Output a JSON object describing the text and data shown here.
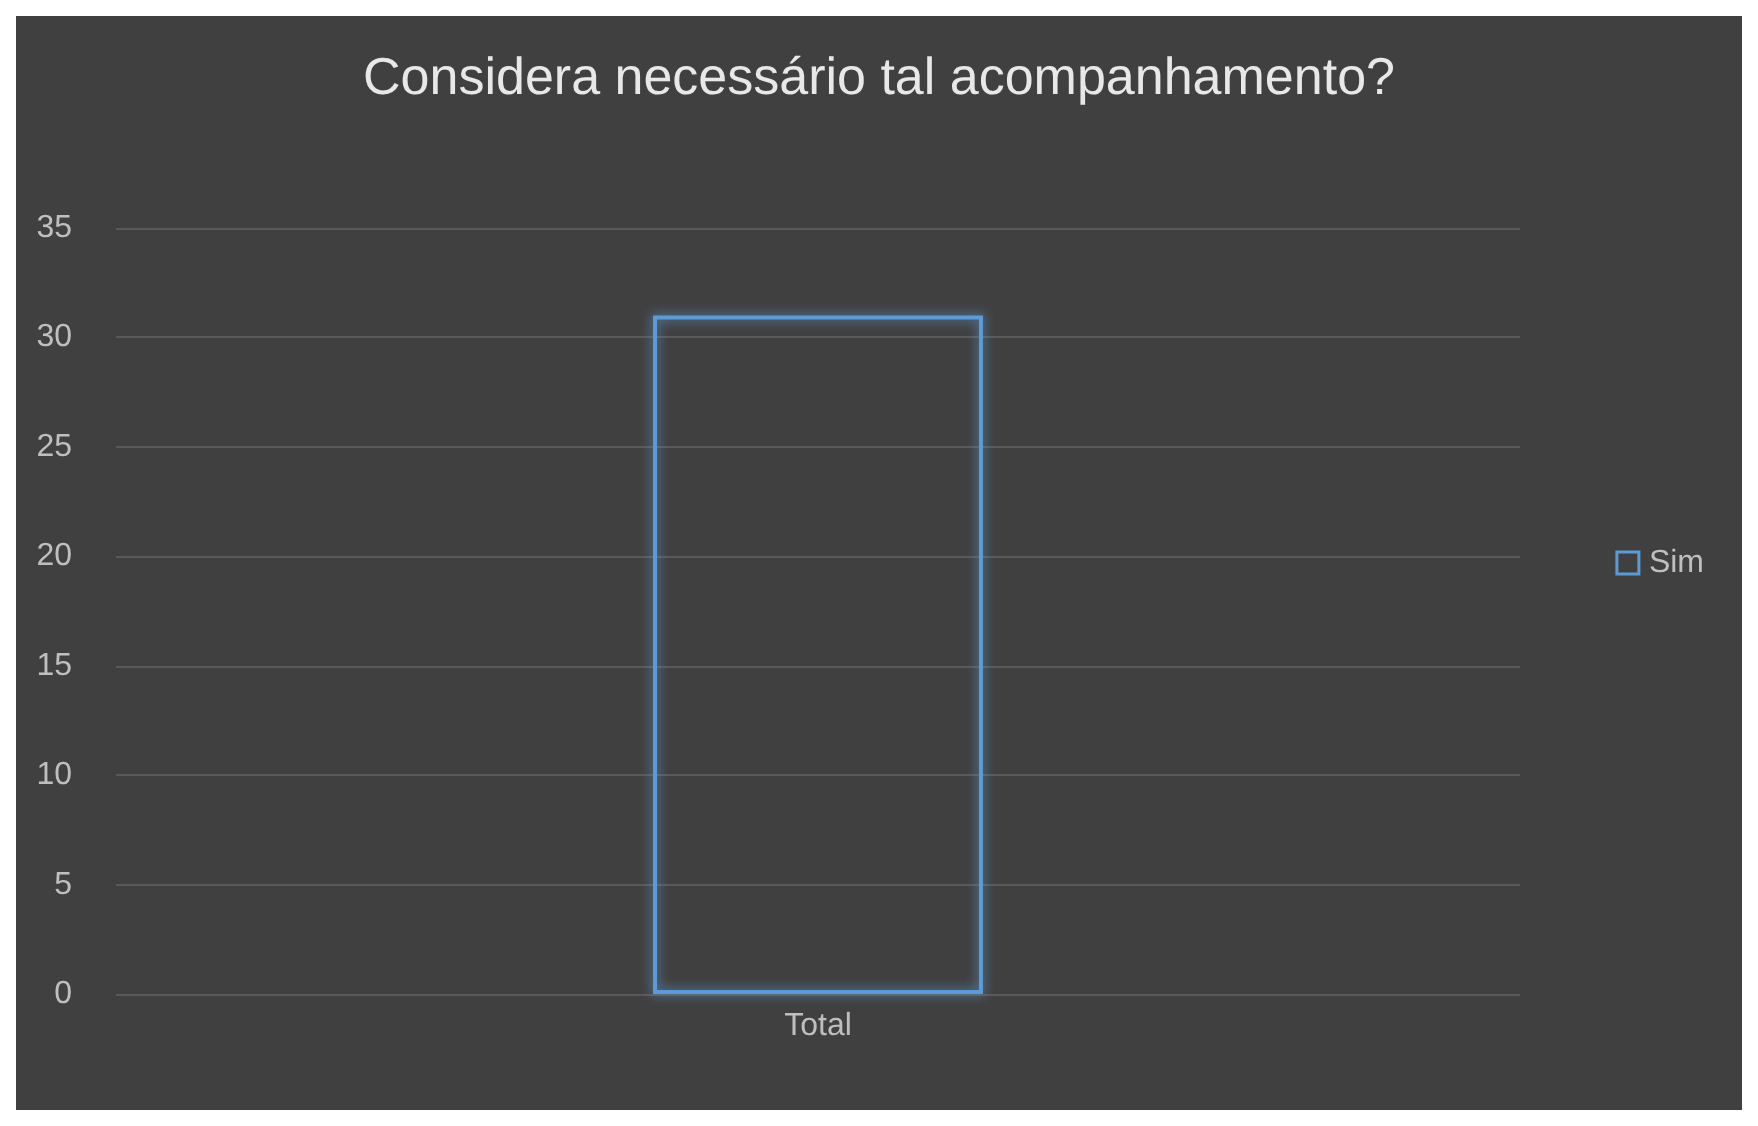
{
  "chart_data": {
    "type": "bar",
    "title": "Considera necessário tal acompanhamento?",
    "categories": [
      "Total"
    ],
    "series": [
      {
        "name": "Sim",
        "color": "#5b9bd5",
        "values": [
          31
        ]
      }
    ],
    "ylim": [
      0,
      35
    ],
    "yticks": [
      0,
      5,
      10,
      15,
      20,
      25,
      30,
      35
    ],
    "grid": "y",
    "legend": "right"
  }
}
